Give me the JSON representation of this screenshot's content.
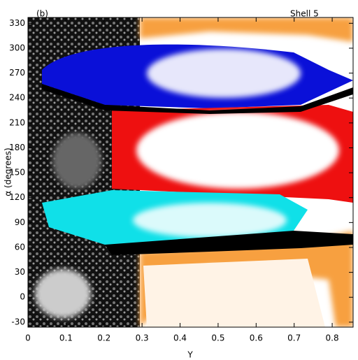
{
  "chart_data": {
    "type": "density",
    "panel_label": "(b)",
    "annotation": "Shell 5",
    "xlabel": "Y",
    "ylabel": "α (degrees)",
    "xlim": [
      0,
      0.855
    ],
    "ylim": [
      -36,
      337
    ],
    "xticks": [
      0,
      0.1,
      0.2,
      0.3,
      0.4,
      0.5,
      0.6,
      0.7,
      0.8
    ],
    "yticks": [
      -30,
      0,
      30,
      60,
      90,
      120,
      150,
      180,
      210,
      240,
      270,
      300,
      330
    ]
  }
}
